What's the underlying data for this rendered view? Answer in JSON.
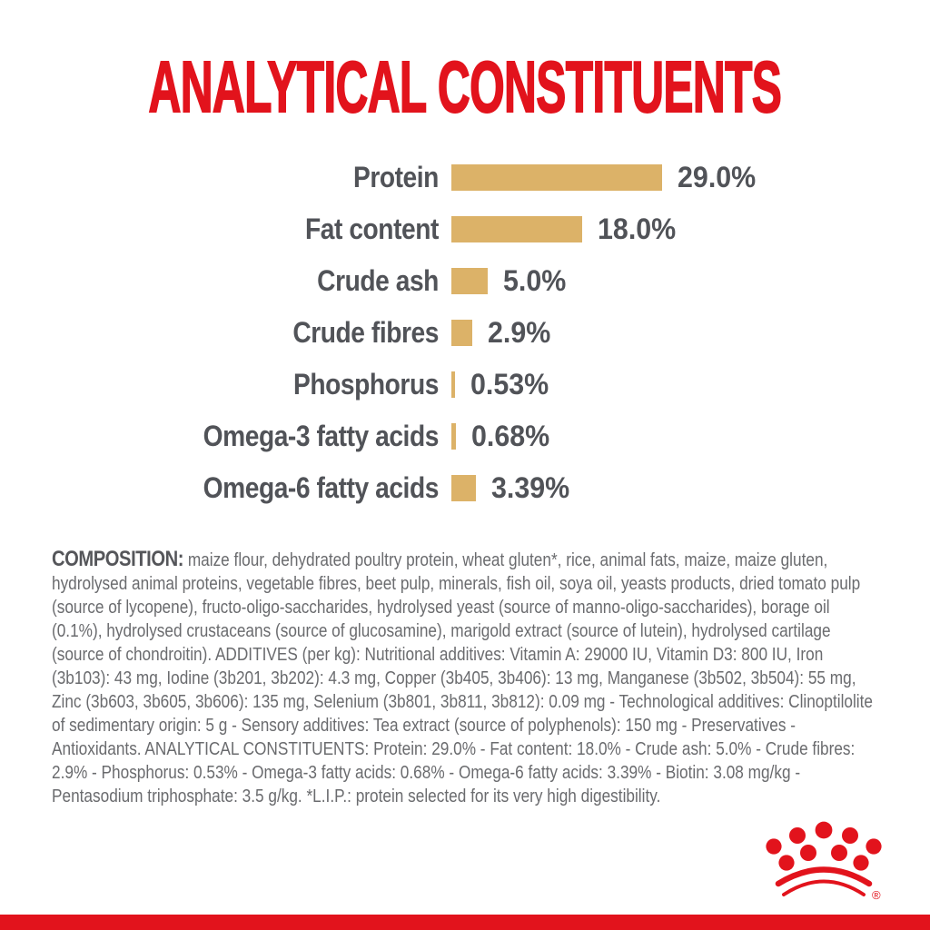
{
  "page": {
    "title": "ANALYTICAL CONSTITUENTS",
    "background_color": "#ffffff",
    "accent_red": "#e2131c",
    "bar_color": "#dcb268",
    "label_color": "#515358",
    "body_text_color": "#6a6b6e"
  },
  "chart_data": {
    "type": "bar",
    "orientation": "horizontal",
    "title": "ANALYTICAL CONSTITUENTS",
    "categories": [
      "Protein",
      "Fat content",
      "Crude ash",
      "Crude fibres",
      "Phosphorus",
      "Omega-3 fatty acids",
      "Omega-6 fatty acids"
    ],
    "values": [
      29.0,
      18.0,
      5.0,
      2.9,
      0.53,
      0.68,
      3.39
    ],
    "value_labels": [
      "29.0%",
      "18.0%",
      "5.0%",
      "2.9%",
      "0.53%",
      "0.68%",
      "3.39%"
    ],
    "unit": "%",
    "xlim": [
      0,
      29
    ],
    "grid": false,
    "legend": false,
    "bar_color": "#dcb268"
  },
  "composition": {
    "heading": "COMPOSITION:",
    "text": " maize flour, dehydrated poultry protein, wheat gluten*, rice, animal fats, maize, maize gluten, hydrolysed animal proteins, vegetable fibres, beet pulp, minerals, fish oil, soya oil, yeasts products, dried tomato pulp (source of lycopene), fructo-oligo-saccharides, hydrolysed yeast (source of manno-oligo-saccharides), borage oil (0.1%), hydrolysed crustaceans (source of glucosamine), marigold extract (source of lutein), hydrolysed cartilage (source of chondroitin). ADDITIVES (per kg): Nutritional additives: Vitamin A: 29000 IU, Vitamin D3: 800 IU, Iron (3b103): 43 mg, Iodine (3b201, 3b202): 4.3 mg, Copper (3b405, 3b406): 13 mg, Manganese (3b502, 3b504): 55 mg, Zinc (3b603, 3b605, 3b606): 135 mg, Selenium (3b801, 3b811, 3b812): 0.09 mg - Technological additives: Clinoptilolite of sedimentary origin: 5 g - Sensory additives: Tea extract (source of polyphenols): 150 mg - Preservatives - Antioxidants. ANALYTICAL CONSTITUENTS: Protein: 29.0% - Fat content: 18.0% - Crude ash: 5.0% - Crude fibres: 2.9% - Phosphorus: 0.53% - Omega-3 fatty acids: 0.68% - Omega-6 fatty acids: 3.39% - Biotin: 3.08 mg/kg - Pentasodium triphosphate: 3.5 g/kg. *L.I.P.: protein selected for its very high digestibility."
  },
  "footer": {
    "logo_icon": "royal-canin-crown-logo",
    "registered_mark": "®",
    "bar_color": "#e2131c"
  }
}
